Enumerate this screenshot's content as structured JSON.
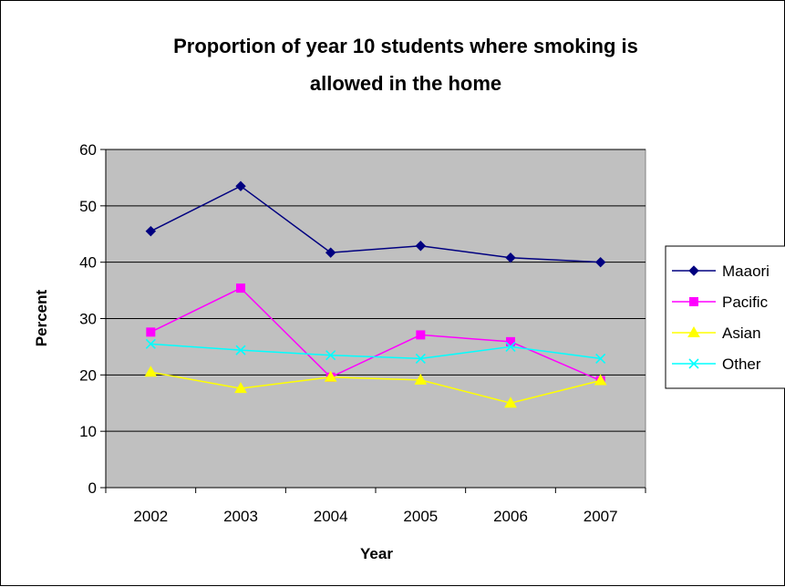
{
  "chart_data": {
    "type": "line",
    "title_lines": [
      "Proportion of year 10 students where smoking is",
      "allowed in the home"
    ],
    "xlabel": "Year",
    "ylabel": "Percent",
    "categories": [
      "2002",
      "2003",
      "2004",
      "2005",
      "2006",
      "2007"
    ],
    "ylim": [
      0,
      60
    ],
    "yticks": [
      "0",
      "10",
      "20",
      "30",
      "40",
      "50",
      "60"
    ],
    "grid": true,
    "legend_position": "right",
    "plot_background": "#c0c0c0",
    "series": [
      {
        "name": "Maaori",
        "color": "#000080",
        "marker": "diamond",
        "values": [
          45.5,
          53.5,
          41.7,
          42.9,
          40.8,
          40.0
        ]
      },
      {
        "name": "Pacific",
        "color": "#ff00ff",
        "marker": "square",
        "values": [
          27.6,
          35.4,
          19.6,
          27.1,
          25.9,
          19.0
        ]
      },
      {
        "name": "Asian",
        "color": "#ffff00",
        "marker": "triangle",
        "values": [
          20.5,
          17.6,
          19.6,
          19.1,
          15.0,
          19.0
        ]
      },
      {
        "name": "Other",
        "color": "#00ffff",
        "marker": "x",
        "values": [
          25.5,
          24.4,
          23.5,
          22.9,
          25.0,
          22.9
        ]
      }
    ]
  }
}
